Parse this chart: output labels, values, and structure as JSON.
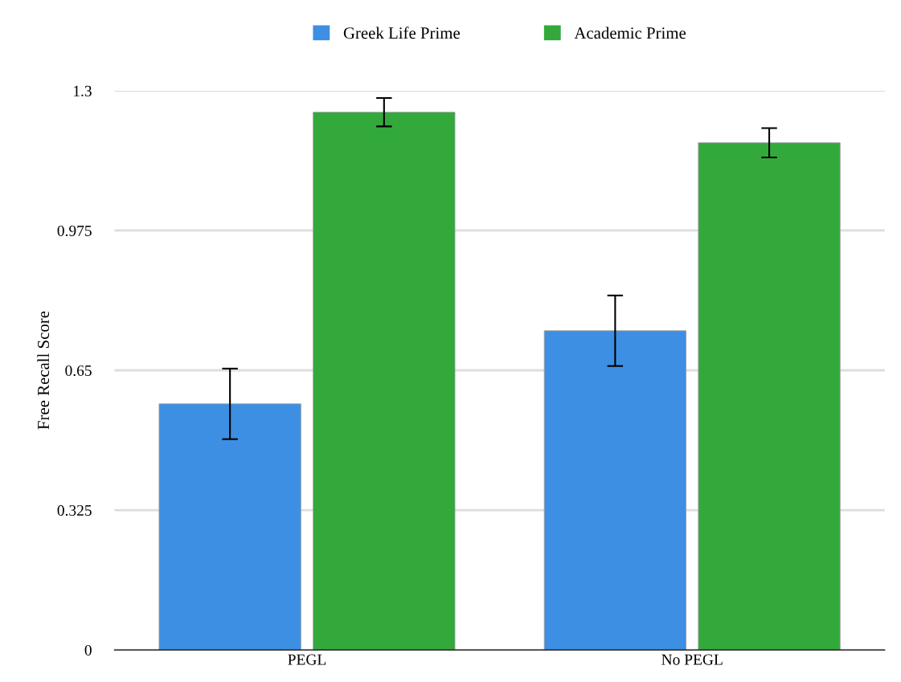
{
  "chart_data": {
    "type": "bar",
    "ylabel": "Free Recall Score",
    "categories": [
      "PEGL",
      "No PEGL"
    ],
    "series": [
      {
        "name": "Greek Life Prime",
        "color": "#3d8fe3",
        "values": [
          0.572,
          0.742
        ],
        "errors": [
          0.082,
          0.082
        ]
      },
      {
        "name": "Academic Prime",
        "color": "#33a93c",
        "values": [
          1.25,
          1.179
        ],
        "errors": [
          0.033,
          0.034
        ]
      }
    ],
    "ylim": [
      0,
      1.3
    ],
    "yticks": [
      0,
      0.325,
      0.65,
      0.975,
      1.3
    ],
    "grid": "y",
    "legend": "top"
  }
}
